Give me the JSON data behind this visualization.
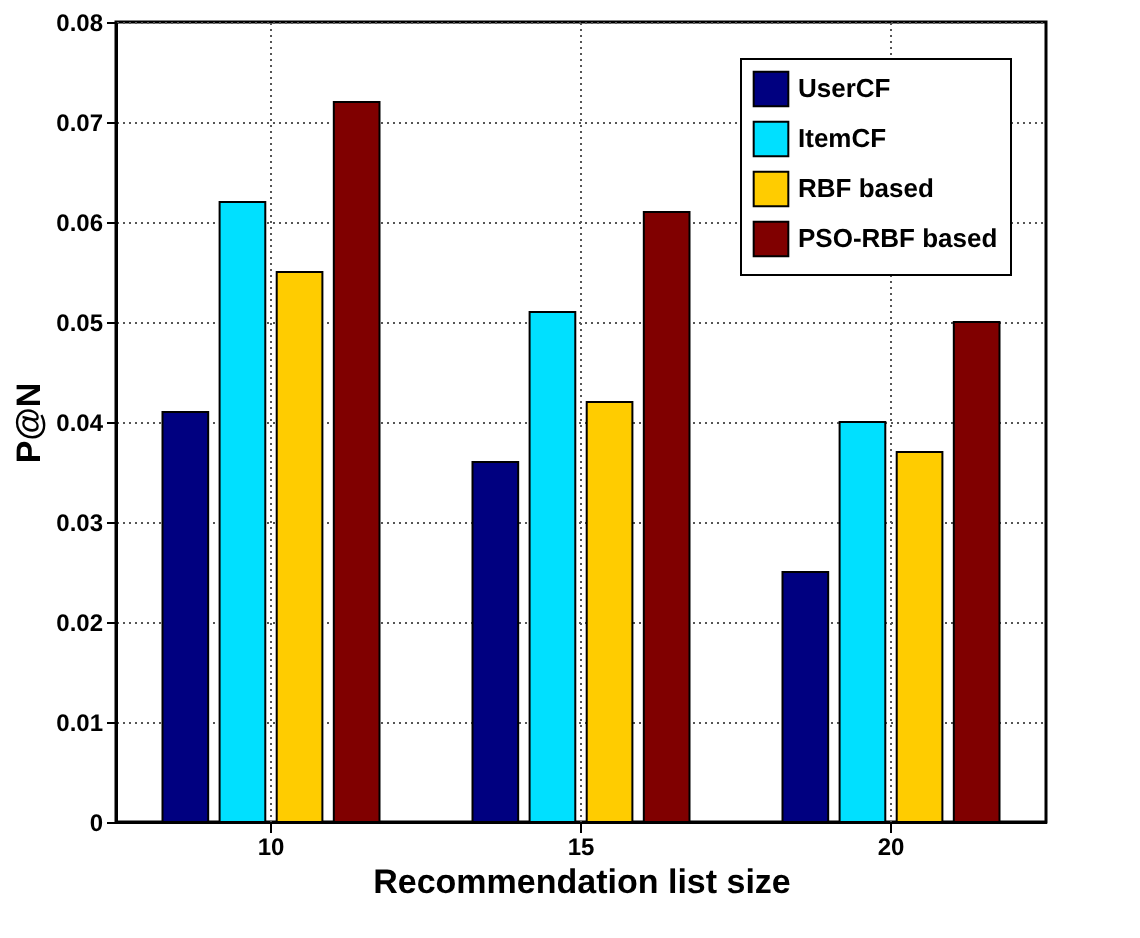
{
  "chart_data": {
    "type": "bar",
    "xlabel": "Recommendation list size",
    "ylabel": "P@N",
    "categories": [
      "10",
      "15",
      "20"
    ],
    "series": [
      {
        "name": "UserCF",
        "color": "#000080",
        "values": [
          0.041,
          0.036,
          0.025
        ]
      },
      {
        "name": "ItemCF",
        "color": "#00e0ff",
        "values": [
          0.062,
          0.051,
          0.04
        ]
      },
      {
        "name": "RBF based",
        "color": "#ffcc00",
        "values": [
          0.055,
          0.042,
          0.037
        ]
      },
      {
        "name": "PSO-RBF based",
        "color": "#800000",
        "values": [
          0.072,
          0.061,
          0.05
        ]
      }
    ],
    "ylim": [
      0,
      0.08
    ],
    "yticks": [
      0,
      0.01,
      0.02,
      0.03,
      0.04,
      0.05,
      0.06,
      0.07,
      0.08
    ],
    "grid": true,
    "legend": "top right"
  }
}
